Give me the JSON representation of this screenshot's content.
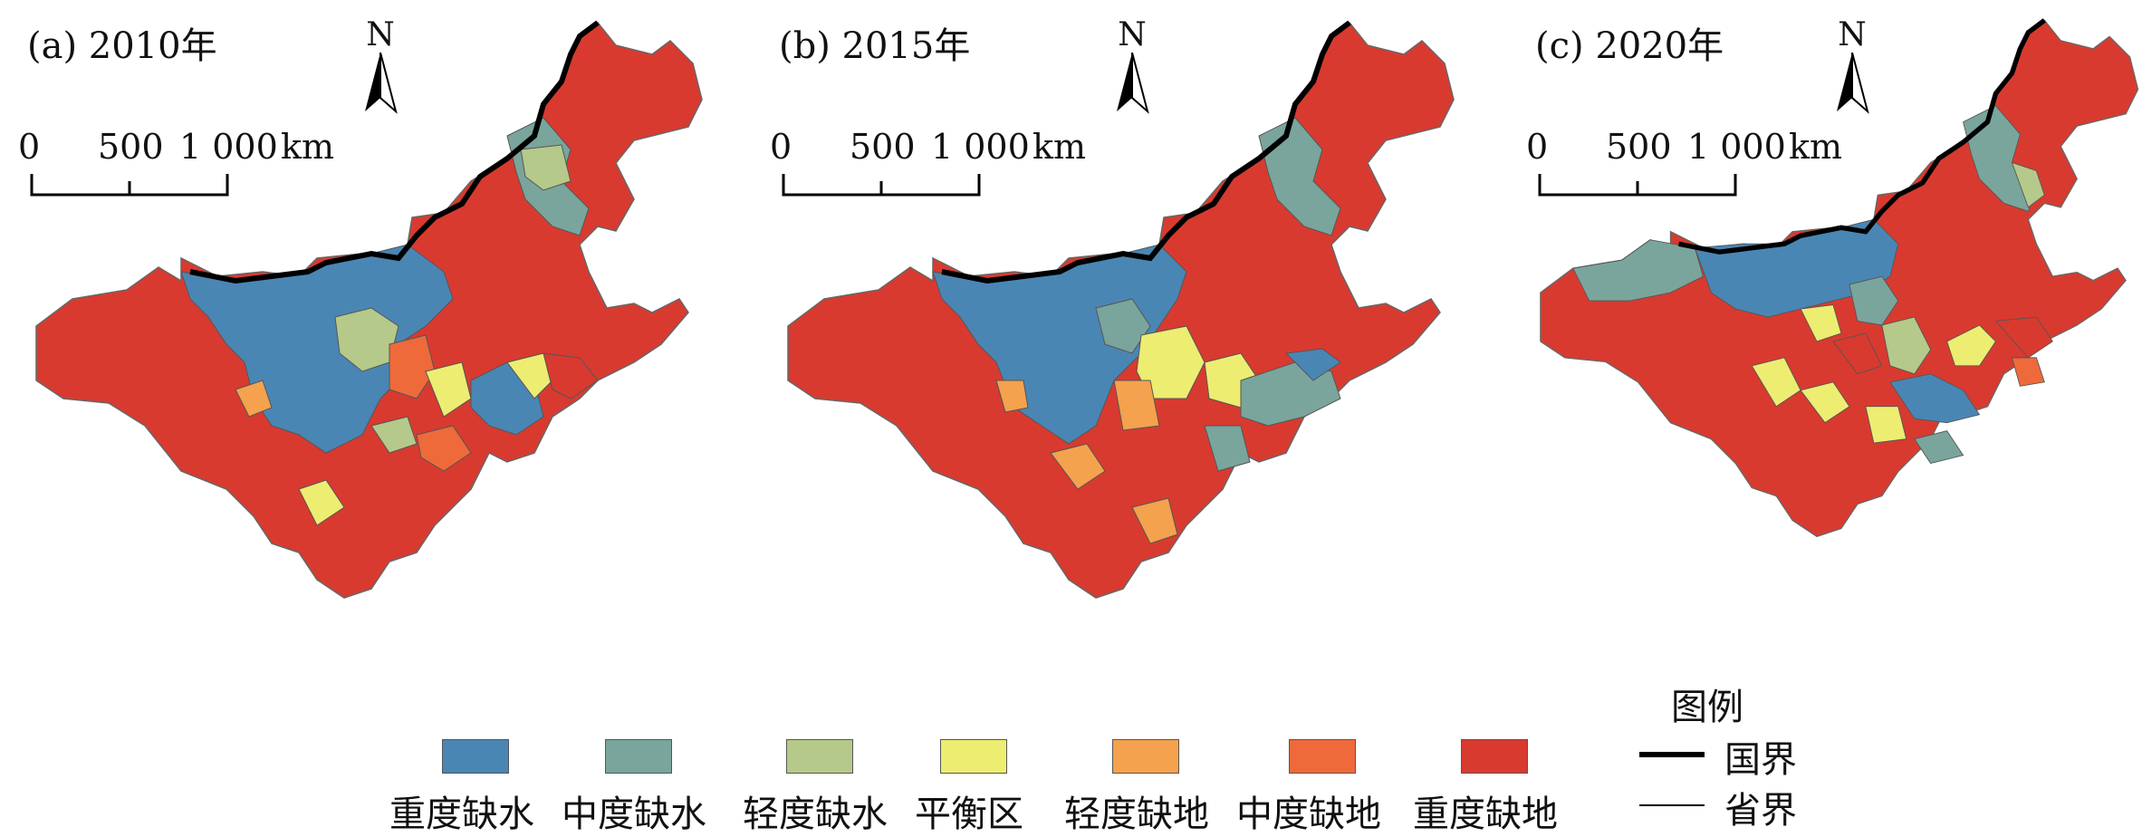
{
  "panels": [
    {
      "title": "(a) 2010年"
    },
    {
      "title": "(b) 2015年"
    },
    {
      "title": "(c) 2020年"
    }
  ],
  "north_arrow": {
    "letter": "N"
  },
  "scale_bar": {
    "ticks": [
      "0",
      "500",
      "1 000"
    ],
    "unit": "km"
  },
  "legend": {
    "categories": [
      {
        "label": "重度缺水",
        "color": "#4a86b4"
      },
      {
        "label": "中度缺水",
        "color": "#7aa59c"
      },
      {
        "label": "轻度缺水",
        "color": "#b5c98a"
      },
      {
        "label": "平衡区",
        "color": "#eded72"
      },
      {
        "label": "轻度缺地",
        "color": "#f4a24e"
      },
      {
        "label": "中度缺地",
        "color": "#ee6a3a"
      },
      {
        "label": "重度缺地",
        "color": "#d93a2f"
      }
    ]
  },
  "map_key": {
    "title": "图例",
    "national_boundary": "国界",
    "provincial_boundary": "省界"
  }
}
